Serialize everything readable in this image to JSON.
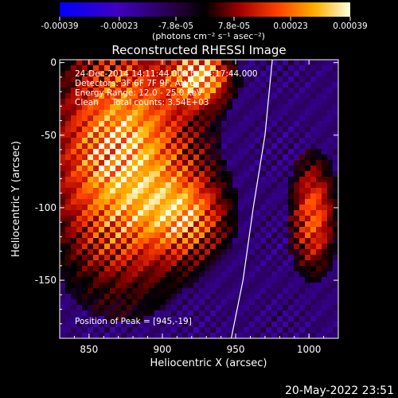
{
  "chart_data": {
    "type": "heatmap",
    "title": "Reconstructed RHESSI Image",
    "xlabel": "Heliocentric X (arcsec)",
    "ylabel": "Heliocentric Y (arcsec)",
    "xlim": [
      830,
      1020
    ],
    "ylim": [
      -190,
      2
    ],
    "xticks": [
      850,
      900,
      950,
      1000
    ],
    "yticks": [
      0,
      -50,
      -100,
      -150
    ],
    "colorbar": {
      "range": [
        -0.00039,
        0.00039
      ],
      "ticks": [
        -0.00039,
        -0.00023,
        -7.8e-05,
        7.8e-05,
        0.00023,
        0.00039
      ],
      "tick_labels": [
        "-0.00039",
        "-0.00023",
        "-7.8e-05",
        "7.8e-05",
        "0.00023",
        "0.00039"
      ],
      "unit_label": "(photons cm⁻² s⁻¹ asec⁻²)"
    },
    "annotations": [
      "24-Dec-2014 14:11:44.000 to 14:17:44.000",
      "Detectors: 3F 6F 7F 9F, Att 0",
      "Energy Range: 12.0 - 25.0 keV",
      "Clean     Total counts: 3.54E+03"
    ],
    "peak_label": "Position of Peak = [945,-19]",
    "limb_curve": [
      [
        975,
        2
      ],
      [
        970,
        -50
      ],
      [
        962,
        -100
      ],
      [
        955,
        -150
      ],
      [
        947,
        -190
      ]
    ],
    "footer_timestamp": "20-May-2022 23:51"
  }
}
